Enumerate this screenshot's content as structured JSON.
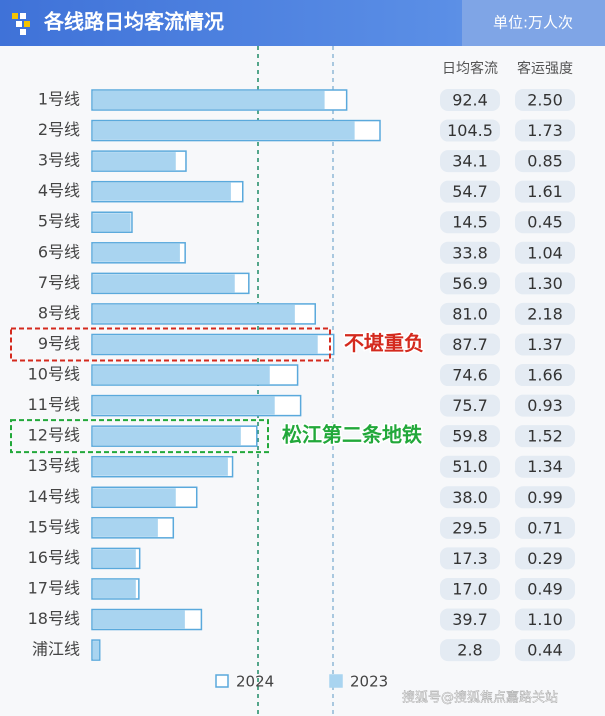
{
  "chart_data": {
    "type": "bar",
    "orientation": "horizontal",
    "title": "各线路日均客流情况",
    "unit": "单位:万人次",
    "categories": [
      "1号线",
      "2号线",
      "3号线",
      "4号线",
      "5号线",
      "6号线",
      "7号线",
      "8号线",
      "9号线",
      "10号线",
      "11号线",
      "12号线",
      "13号线",
      "14号线",
      "15号线",
      "16号线",
      "17号线",
      "18号线",
      "浦江线"
    ],
    "series": [
      {
        "name": "2024",
        "color": "#5aa9dc",
        "values": [
          92.4,
          104.5,
          34.1,
          54.7,
          14.5,
          33.8,
          56.9,
          81.0,
          87.7,
          74.6,
          75.7,
          59.8,
          51.0,
          38.0,
          29.5,
          17.3,
          17.0,
          39.7,
          2.8
        ],
        "value_labels": [
          "92.4",
          "104.5",
          "34.1",
          "54.7",
          "14.5",
          "33.8",
          "56.9",
          "81.0",
          "87.7",
          "74.6",
          "75.7",
          "59.8",
          "51.0",
          "38.0",
          "29.5",
          "17.3",
          "17.0",
          "39.7",
          "2.8"
        ]
      },
      {
        "name": "2023",
        "color": "#a9d4f0",
        "values": [
          84.4,
          95.3,
          30.4,
          50.4,
          14.0,
          31.9,
          51.8,
          73.6,
          81.9,
          64.5,
          66.3,
          54.0,
          49.3,
          30.4,
          23.9,
          15.9,
          15.9,
          33.7,
          2.6
        ]
      }
    ],
    "table": {
      "columns": [
        "日均客流",
        "客运强度"
      ],
      "intensity": [
        "2.50",
        "1.73",
        "0.85",
        "1.61",
        "0.45",
        "1.04",
        "1.30",
        "2.18",
        "1.37",
        "1.66",
        "0.93",
        "1.52",
        "1.34",
        "0.99",
        "0.71",
        "0.29",
        "0.49",
        "1.10",
        "0.44"
      ]
    },
    "annotations": [
      {
        "text": "不堪重负",
        "category": 8,
        "color": "#d42a1e"
      },
      {
        "text": "松江第二条地铁",
        "category": 11,
        "color": "#22a83a"
      }
    ],
    "source": "搜狐号@搜狐焦点嘉路关站"
  }
}
